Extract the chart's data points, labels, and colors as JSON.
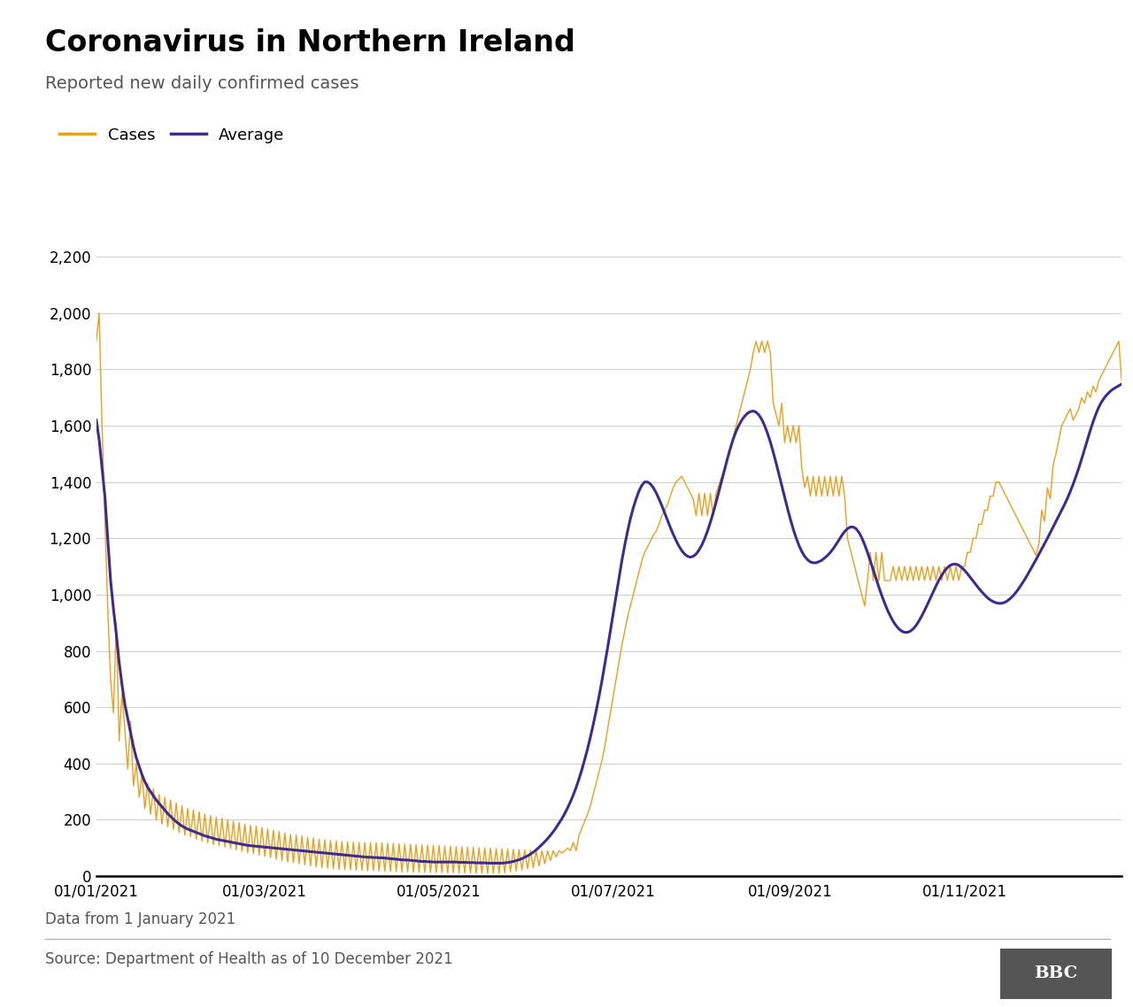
{
  "title": "Coronavirus in Northern Ireland",
  "subtitle": "Reported new daily confirmed cases",
  "cases_label": "Cases",
  "avg_label": "Average",
  "cases_color": "#E8A020",
  "avg_color": "#3D2B8E",
  "footer_note": "Data from 1 January 2021",
  "source": "Source: Department of Health as of 10 December 2021",
  "bbc_label": "BBC",
  "ylim": [
    0,
    2200
  ],
  "yticks": [
    0,
    200,
    400,
    600,
    800,
    1000,
    1200,
    1400,
    1600,
    1800,
    2000,
    2200
  ],
  "xtick_dates": [
    "2021-01-01",
    "2021-03-01",
    "2021-05-01",
    "2021-07-01",
    "2021-09-01",
    "2021-11-01"
  ],
  "xtick_labels": [
    "01/01/2021",
    "01/03/2021",
    "01/05/2021",
    "01/07/2021",
    "01/09/2021",
    "01/11/2021"
  ],
  "avg": [
    1620,
    1550,
    1450,
    1350,
    1200,
    1050,
    950,
    860,
    760,
    680,
    610,
    560,
    510,
    460,
    420,
    390,
    360,
    335,
    315,
    300,
    285,
    270,
    258,
    246,
    234,
    222,
    212,
    202,
    193,
    185,
    178,
    172,
    167,
    163,
    159,
    155,
    151,
    147,
    143,
    140,
    137,
    134,
    131,
    129,
    127,
    125,
    123,
    121,
    119,
    117,
    115,
    113,
    111,
    109,
    108,
    107,
    106,
    105,
    104,
    103,
    102,
    101,
    100,
    99,
    98,
    97,
    96,
    95,
    94,
    93,
    92,
    91,
    90,
    89,
    88,
    87,
    86,
    85,
    84,
    83,
    82,
    81,
    80,
    79,
    78,
    77,
    76,
    75,
    74,
    73,
    72,
    71,
    70,
    69,
    68,
    67,
    67,
    66,
    66,
    65,
    65,
    64,
    63,
    62,
    61,
    60,
    59,
    58,
    57,
    57,
    56,
    55,
    54,
    53,
    52,
    52,
    51,
    51,
    50,
    50,
    50,
    50,
    50,
    50,
    50,
    50,
    50,
    49,
    49,
    49,
    48,
    48,
    48,
    47,
    47,
    47,
    47,
    46,
    46,
    46,
    46,
    46,
    46,
    47,
    48,
    50,
    52,
    55,
    58,
    62,
    67,
    72,
    78,
    85,
    93,
    102,
    112,
    122,
    133,
    145,
    158,
    172,
    188,
    204,
    222,
    242,
    264,
    288,
    315,
    345,
    378,
    414,
    452,
    494,
    539,
    587,
    638,
    692,
    750,
    810,
    872,
    935,
    998,
    1060,
    1120,
    1175,
    1225,
    1270,
    1308,
    1340,
    1368,
    1388,
    1400,
    1400,
    1393,
    1380,
    1362,
    1340,
    1316,
    1290,
    1264,
    1238,
    1214,
    1192,
    1172,
    1156,
    1144,
    1136,
    1133,
    1136,
    1144,
    1158,
    1176,
    1199,
    1226,
    1257,
    1291,
    1328,
    1367,
    1406,
    1445,
    1484,
    1520,
    1553,
    1580,
    1602,
    1620,
    1634,
    1644,
    1650,
    1652,
    1648,
    1638,
    1622,
    1600,
    1573,
    1542,
    1506,
    1468,
    1428,
    1387,
    1346,
    1306,
    1268,
    1233,
    1202,
    1175,
    1153,
    1136,
    1124,
    1116,
    1113,
    1113,
    1117,
    1122,
    1130,
    1139,
    1150,
    1163,
    1178,
    1194,
    1210,
    1224,
    1234,
    1240,
    1240,
    1234,
    1221,
    1202,
    1178,
    1150,
    1120,
    1089,
    1057,
    1026,
    997,
    970,
    945,
    924,
    905,
    890,
    878,
    870,
    866,
    866,
    870,
    878,
    890,
    906,
    924,
    944,
    965,
    987,
    1009,
    1031,
    1051,
    1069,
    1084,
    1096,
    1104,
    1108,
    1108,
    1104,
    1096,
    1086,
    1074,
    1061,
    1048,
    1035,
    1022,
    1010,
    999,
    989,
    981,
    975,
    971,
    969,
    969,
    972,
    978,
    986,
    996,
    1008,
    1022,
    1037,
    1053,
    1070,
    1088,
    1106,
    1124,
    1143,
    1162,
    1181,
    1200,
    1220,
    1240,
    1260,
    1280,
    1300,
    1320,
    1342,
    1366,
    1392,
    1420,
    1450,
    1482,
    1516,
    1550,
    1583,
    1614,
    1642,
    1666,
    1685,
    1700,
    1712,
    1722,
    1730,
    1736,
    1742,
    1748
  ],
  "cases": [
    1900,
    2000,
    1600,
    1280,
    950,
    700,
    580,
    900,
    480,
    650,
    520,
    380,
    550,
    320,
    400,
    280,
    360,
    240,
    330,
    220,
    310,
    200,
    290,
    185,
    280,
    175,
    270,
    165,
    260,
    155,
    250,
    145,
    240,
    140,
    235,
    130,
    228,
    125,
    220,
    118,
    215,
    112,
    210,
    108,
    205,
    103,
    200,
    98,
    195,
    93,
    190,
    88,
    185,
    83,
    180,
    80,
    178,
    75,
    173,
    70,
    168,
    65,
    163,
    60,
    158,
    55,
    153,
    50,
    148,
    48,
    146,
    44,
    142,
    40,
    138,
    36,
    135,
    33,
    131,
    30,
    129,
    28,
    127,
    26,
    125,
    24,
    123,
    23,
    122,
    22,
    121,
    21,
    120,
    20,
    119,
    19,
    119,
    19,
    118,
    18,
    118,
    17,
    117,
    17,
    116,
    16,
    115,
    15,
    114,
    15,
    113,
    14,
    112,
    14,
    111,
    14,
    110,
    13,
    109,
    13,
    108,
    13,
    107,
    12,
    106,
    12,
    105,
    11,
    104,
    11,
    103,
    11,
    102,
    10,
    101,
    10,
    100,
    10,
    99,
    10,
    98,
    10,
    97,
    12,
    96,
    15,
    95,
    18,
    94,
    22,
    93,
    26,
    92,
    30,
    91,
    36,
    90,
    44,
    90,
    55,
    90,
    68,
    90,
    82,
    90,
    100,
    90,
    120,
    90,
    145,
    170,
    195,
    220,
    250,
    290,
    330,
    370,
    410,
    460,
    520,
    580,
    640,
    700,
    760,
    820,
    870,
    920,
    960,
    1000,
    1040,
    1080,
    1120,
    1150,
    1170,
    1190,
    1210,
    1225,
    1250,
    1280,
    1300,
    1320,
    1350,
    1380,
    1400,
    1410,
    1420,
    1400,
    1380,
    1360,
    1340,
    1280,
    1360,
    1280,
    1360,
    1280,
    1360,
    1280,
    1360,
    1390,
    1420,
    1450,
    1480,
    1520,
    1560,
    1600,
    1640,
    1680,
    1720,
    1760,
    1800,
    1860,
    1900,
    1860,
    1900,
    1860,
    1900,
    1860,
    1680,
    1640,
    1600,
    1680,
    1540,
    1600,
    1540,
    1600,
    1540,
    1600,
    1450,
    1380,
    1420,
    1350,
    1420,
    1350,
    1420,
    1350,
    1420,
    1350,
    1420,
    1350,
    1420,
    1350,
    1420,
    1350,
    1200,
    1160,
    1120,
    1080,
    1040,
    1000,
    960,
    1050,
    1150,
    1050,
    1150,
    1050,
    1150,
    1050,
    1050,
    1050,
    1100,
    1050,
    1100,
    1050,
    1100,
    1050,
    1100,
    1050,
    1100,
    1050,
    1100,
    1050,
    1100,
    1050,
    1100,
    1050,
    1100,
    1050,
    1100,
    1050,
    1100,
    1050,
    1100,
    1050,
    1100,
    1100,
    1150,
    1150,
    1200,
    1200,
    1250,
    1250,
    1300,
    1300,
    1350,
    1350,
    1400,
    1400,
    1380,
    1360,
    1340,
    1320,
    1300,
    1280,
    1260,
    1240,
    1220,
    1200,
    1180,
    1160,
    1140,
    1180,
    1300,
    1260,
    1380,
    1340,
    1460,
    1500,
    1550,
    1600,
    1620,
    1640,
    1660,
    1620,
    1640,
    1660,
    1700,
    1680,
    1720,
    1700,
    1740,
    1720,
    1760,
    1780,
    1800,
    1820,
    1840,
    1860,
    1880,
    1900,
    1760
  ]
}
